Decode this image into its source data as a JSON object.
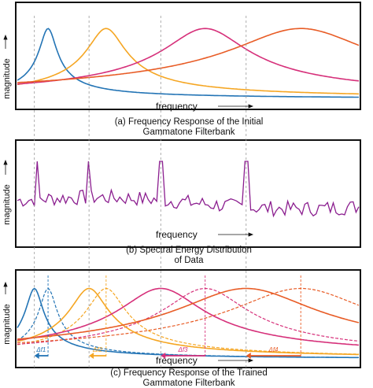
{
  "colors": {
    "blue": "#2374b5",
    "orange": "#f5a623",
    "magenta": "#d6307a",
    "red": "#e85c26",
    "purple": "#8b1e8f",
    "frame": "#111111",
    "guide": "#999999"
  },
  "panels": [
    {
      "id": "a",
      "ylabel": "magnitude",
      "xlabel": "frequency",
      "caption_line1": "(a) Frequency Response of the Initial",
      "caption_line2": "Gammatone Filterbank"
    },
    {
      "id": "b",
      "ylabel": "magnitude",
      "xlabel": "frequency",
      "caption_line1": "(b) Spectral Energy Distribution",
      "caption_line2": "of Data"
    },
    {
      "id": "c",
      "ylabel": "magnitude",
      "xlabel": "frequency",
      "caption_line1": "(c) Frequency Response of the Trained",
      "caption_line2": "Gammatone Filterbank"
    }
  ],
  "shift_labels": [
    "Δf1",
    "Δf2",
    "Δf3",
    "Δf4"
  ],
  "chart_data": [
    {
      "type": "line",
      "x": [
        0,
        1
      ],
      "xlabel": "frequency",
      "ylabel": "magnitude",
      "series": [
        {
          "center": 0.09,
          "bandwidth": 0.025,
          "color": "blue"
        },
        {
          "center": 0.26,
          "bandwidth": 0.055,
          "color": "orange"
        },
        {
          "center": 0.55,
          "bandwidth": 0.12,
          "color": "magenta"
        },
        {
          "center": 0.83,
          "bandwidth": 0.2,
          "color": "red"
        }
      ]
    },
    {
      "type": "line",
      "xlabel": "frequency",
      "ylabel": "magnitude",
      "peaks": [
        0.06,
        0.21,
        0.42,
        0.67
      ],
      "series": [
        {
          "color": "purple"
        }
      ]
    },
    {
      "type": "line",
      "xlabel": "frequency",
      "ylabel": "magnitude",
      "initial_centers": [
        0.09,
        0.26,
        0.55,
        0.83
      ],
      "trained_centers": [
        0.05,
        0.21,
        0.42,
        0.67
      ],
      "shifts": [
        -0.04,
        -0.05,
        -0.13,
        -0.16
      ]
    }
  ]
}
